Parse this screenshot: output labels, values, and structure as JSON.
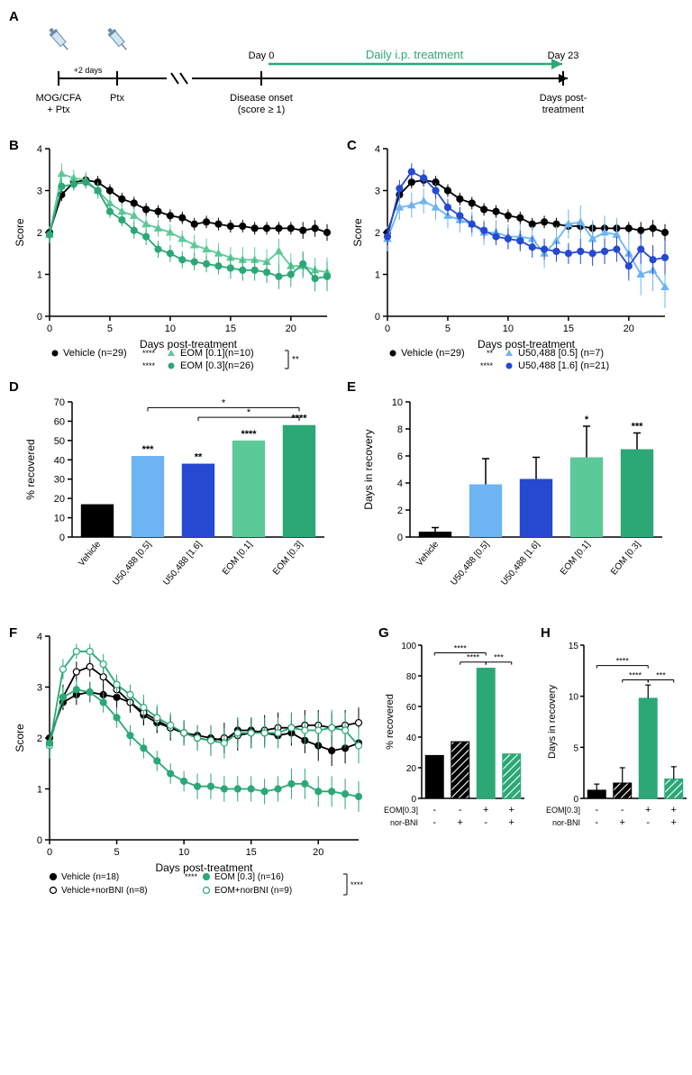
{
  "panelA": {
    "labels": {
      "mog": "MOG/CFA\n+ Ptx",
      "ptx": "Ptx",
      "onset": "Disease onset\n(score ≥ 1)",
      "day0": "Day 0",
      "day23": "Day 23",
      "days_post": "Days post-\ntreatment",
      "treatment": "Daily i.p. treatment",
      "plus2": "+2 days"
    },
    "arrow_color": "#2ba876"
  },
  "panelsBC": {
    "xlabel": "Days post-treatment",
    "ylabel": "Score",
    "xlim": [
      0,
      23
    ],
    "xtick_step": 5,
    "ylim": [
      0,
      4
    ],
    "ytick_step": 1,
    "vehicle": {
      "label": "Vehicle (n=29)",
      "color": "#000000",
      "marker": "circle",
      "x": [
        0,
        1,
        2,
        3,
        4,
        5,
        6,
        7,
        8,
        9,
        10,
        11,
        12,
        13,
        14,
        15,
        16,
        17,
        18,
        19,
        20,
        21,
        22,
        23
      ],
      "y": [
        2.0,
        2.9,
        3.2,
        3.25,
        3.2,
        3.0,
        2.8,
        2.7,
        2.55,
        2.5,
        2.4,
        2.35,
        2.2,
        2.25,
        2.2,
        2.15,
        2.15,
        2.1,
        2.1,
        2.1,
        2.1,
        2.05,
        2.1,
        2.0
      ],
      "err": [
        0.15,
        0.15,
        0.15,
        0.15,
        0.15,
        0.15,
        0.15,
        0.15,
        0.15,
        0.15,
        0.15,
        0.15,
        0.15,
        0.15,
        0.15,
        0.15,
        0.15,
        0.15,
        0.15,
        0.15,
        0.15,
        0.2,
        0.2,
        0.2
      ]
    }
  },
  "panelB": {
    "eom01": {
      "label": "EOM [0.1](n=10)",
      "color": "#5cc998",
      "marker": "triangle",
      "sig": "****",
      "x": [
        0,
        1,
        2,
        3,
        4,
        5,
        6,
        7,
        8,
        9,
        10,
        11,
        12,
        13,
        14,
        15,
        16,
        17,
        18,
        19,
        20,
        21,
        22,
        23
      ],
      "y": [
        1.95,
        3.4,
        3.3,
        3.25,
        3.0,
        2.7,
        2.5,
        2.4,
        2.2,
        2.1,
        2.0,
        1.85,
        1.7,
        1.6,
        1.5,
        1.4,
        1.35,
        1.35,
        1.3,
        1.55,
        1.2,
        1.2,
        1.1,
        1.05
      ],
      "err": [
        0.2,
        0.25,
        0.2,
        0.2,
        0.2,
        0.2,
        0.2,
        0.2,
        0.2,
        0.2,
        0.2,
        0.2,
        0.25,
        0.25,
        0.25,
        0.25,
        0.3,
        0.3,
        0.3,
        0.3,
        0.3,
        0.3,
        0.3,
        0.35
      ]
    },
    "eom03": {
      "label": "EOM [0.3](n=26)",
      "color": "#2ba876",
      "marker": "circle",
      "sig": "****",
      "x": [
        0,
        1,
        2,
        3,
        4,
        5,
        6,
        7,
        8,
        9,
        10,
        11,
        12,
        13,
        14,
        15,
        16,
        17,
        18,
        19,
        20,
        21,
        22,
        23
      ],
      "y": [
        1.95,
        3.1,
        3.15,
        3.2,
        3.0,
        2.5,
        2.3,
        2.05,
        1.9,
        1.6,
        1.5,
        1.35,
        1.3,
        1.25,
        1.2,
        1.15,
        1.1,
        1.1,
        1.05,
        0.95,
        1.0,
        1.25,
        0.9,
        0.95
      ],
      "err": [
        0.15,
        0.15,
        0.15,
        0.15,
        0.15,
        0.15,
        0.15,
        0.2,
        0.2,
        0.2,
        0.2,
        0.2,
        0.2,
        0.2,
        0.2,
        0.25,
        0.25,
        0.25,
        0.25,
        0.3,
        0.3,
        0.3,
        0.3,
        0.35
      ]
    },
    "bracket_sig": "**"
  },
  "panelC": {
    "u5005": {
      "label": "U50,488 [0.5] (n=7)",
      "color": "#6db4f2",
      "marker": "triangle",
      "sig": "**",
      "x": [
        0,
        1,
        2,
        3,
        4,
        5,
        6,
        7,
        8,
        9,
        10,
        11,
        12,
        13,
        14,
        15,
        16,
        17,
        18,
        19,
        20,
        21,
        22,
        23
      ],
      "y": [
        1.85,
        2.6,
        2.65,
        2.75,
        2.6,
        2.4,
        2.3,
        2.2,
        2.0,
        2.0,
        1.9,
        1.9,
        1.85,
        1.5,
        1.8,
        2.2,
        2.25,
        1.85,
        2.0,
        1.95,
        1.5,
        1.0,
        1.1,
        0.7
      ],
      "err": [
        0.3,
        0.3,
        0.3,
        0.3,
        0.3,
        0.3,
        0.3,
        0.3,
        0.3,
        0.3,
        0.3,
        0.3,
        0.3,
        0.35,
        0.35,
        0.35,
        0.4,
        0.45,
        0.4,
        0.4,
        0.5,
        0.5,
        0.5,
        0.5
      ]
    },
    "u5016": {
      "label": "U50,488 [1.6] (n=21)",
      "color": "#2549d1",
      "marker": "circle",
      "sig": "****",
      "x": [
        0,
        1,
        2,
        3,
        4,
        5,
        6,
        7,
        8,
        9,
        10,
        11,
        12,
        13,
        14,
        15,
        16,
        17,
        18,
        19,
        20,
        21,
        22,
        23
      ],
      "y": [
        1.9,
        3.05,
        3.45,
        3.3,
        3.0,
        2.6,
        2.4,
        2.2,
        2.05,
        1.9,
        1.85,
        1.8,
        1.65,
        1.6,
        1.55,
        1.5,
        1.55,
        1.5,
        1.55,
        1.6,
        1.2,
        1.6,
        1.35,
        1.4
      ],
      "err": [
        0.2,
        0.2,
        0.2,
        0.2,
        0.2,
        0.2,
        0.2,
        0.2,
        0.2,
        0.2,
        0.25,
        0.25,
        0.25,
        0.25,
        0.25,
        0.25,
        0.3,
        0.3,
        0.3,
        0.3,
        0.35,
        0.35,
        0.35,
        0.4
      ]
    }
  },
  "panelD": {
    "ylabel": "% recovered",
    "ylim": [
      0,
      70
    ],
    "ytick_step": 10,
    "categories": [
      "Vehicle",
      "U50,488 [0.5]",
      "U50,488 [1.6]",
      "EOM [0.1]",
      "EOM [0.3]"
    ],
    "values": [
      17,
      42,
      38,
      50,
      58
    ],
    "colors": [
      "#000000",
      "#6db4f2",
      "#2549d1",
      "#5cc998",
      "#2ba876"
    ],
    "sig_vs_vehicle": [
      "",
      "***",
      "**",
      "****",
      "****"
    ],
    "brackets": [
      {
        "from": 2,
        "to": 4,
        "sig": "*",
        "y": 62
      },
      {
        "from": 1,
        "to": 4,
        "sig": "*",
        "y": 67
      }
    ]
  },
  "panelE": {
    "ylabel": "Days in recovery",
    "ylim": [
      0,
      10
    ],
    "ytick_step": 2,
    "categories": [
      "Vehicle",
      "U50,488 [0.5]",
      "U50,488 [1.6]",
      "EOM [0.1]",
      "EOM [0.3]"
    ],
    "values": [
      0.4,
      3.9,
      4.3,
      5.9,
      6.5
    ],
    "errors": [
      0.3,
      1.9,
      1.6,
      2.3,
      1.2
    ],
    "colors": [
      "#000000",
      "#6db4f2",
      "#2549d1",
      "#5cc998",
      "#2ba876"
    ],
    "sig_vs_vehicle": [
      "",
      "",
      "",
      "*",
      "***"
    ]
  },
  "panelF": {
    "xlabel": "Days post-treatment",
    "ylabel": "Score",
    "xlim": [
      0,
      23
    ],
    "xtick_step": 5,
    "ylim": [
      0,
      4
    ],
    "ytick_step": 1,
    "series": {
      "vehicle": {
        "label": "Vehicle (n=18)",
        "color": "#000000",
        "marker": "circle",
        "fill": "#000000",
        "x": [
          0,
          1,
          2,
          3,
          4,
          5,
          6,
          7,
          8,
          9,
          10,
          11,
          12,
          13,
          14,
          15,
          16,
          17,
          18,
          19,
          20,
          21,
          22,
          23
        ],
        "y": [
          2.0,
          2.7,
          2.85,
          2.9,
          2.85,
          2.8,
          2.7,
          2.45,
          2.3,
          2.2,
          2.1,
          2.05,
          2.0,
          1.95,
          2.15,
          2.15,
          2.1,
          2.05,
          2.1,
          1.95,
          1.85,
          1.75,
          1.8,
          1.9
        ],
        "err": [
          0.2,
          0.15,
          0.2,
          0.2,
          0.2,
          0.2,
          0.2,
          0.2,
          0.2,
          0.2,
          0.2,
          0.2,
          0.2,
          0.25,
          0.25,
          0.25,
          0.25,
          0.25,
          0.25,
          0.25,
          0.3,
          0.3,
          0.3,
          0.3
        ]
      },
      "vehicle_norbni": {
        "label": "Vehicle+norBNI (n=8)",
        "color": "#000000",
        "marker": "circle",
        "fill": "#ffffff",
        "x": [
          0,
          1,
          2,
          3,
          4,
          5,
          6,
          7,
          8,
          9,
          10,
          11,
          12,
          13,
          14,
          15,
          16,
          17,
          18,
          19,
          20,
          21,
          22,
          23
        ],
        "y": [
          1.9,
          2.8,
          3.3,
          3.4,
          3.2,
          2.95,
          2.7,
          2.5,
          2.35,
          2.2,
          2.1,
          2.0,
          1.95,
          2.0,
          2.05,
          2.1,
          2.15,
          2.2,
          2.2,
          2.25,
          2.25,
          2.2,
          2.25,
          2.3
        ],
        "err": [
          0.3,
          0.25,
          0.2,
          0.2,
          0.2,
          0.2,
          0.2,
          0.25,
          0.25,
          0.25,
          0.25,
          0.25,
          0.3,
          0.3,
          0.3,
          0.3,
          0.3,
          0.3,
          0.3,
          0.3,
          0.3,
          0.3,
          0.3,
          0.3
        ]
      },
      "eom03": {
        "label": "EOM [0.3] (n=16)",
        "color": "#2ba876",
        "marker": "circle",
        "fill": "#2ba876",
        "sig": "****",
        "x": [
          0,
          1,
          2,
          3,
          4,
          5,
          6,
          7,
          8,
          9,
          10,
          11,
          12,
          13,
          14,
          15,
          16,
          17,
          18,
          19,
          20,
          21,
          22,
          23
        ],
        "y": [
          1.9,
          2.8,
          2.95,
          2.9,
          2.7,
          2.4,
          2.05,
          1.8,
          1.55,
          1.3,
          1.15,
          1.05,
          1.05,
          1.0,
          1.0,
          1.0,
          0.95,
          1.0,
          1.1,
          1.1,
          0.95,
          0.95,
          0.9,
          0.85
        ],
        "err": [
          0.2,
          0.2,
          0.2,
          0.2,
          0.2,
          0.2,
          0.2,
          0.2,
          0.2,
          0.2,
          0.2,
          0.25,
          0.25,
          0.25,
          0.25,
          0.25,
          0.25,
          0.25,
          0.3,
          0.3,
          0.3,
          0.3,
          0.3,
          0.3
        ]
      },
      "eom_norbni": {
        "label": "EOM+norBNI (n=9)",
        "color": "#2ba876",
        "marker": "circle",
        "fill": "#ffffff",
        "x": [
          0,
          1,
          2,
          3,
          4,
          5,
          6,
          7,
          8,
          9,
          10,
          11,
          12,
          13,
          14,
          15,
          16,
          17,
          18,
          19,
          20,
          21,
          22,
          23
        ],
        "y": [
          1.85,
          3.35,
          3.7,
          3.7,
          3.45,
          3.05,
          2.85,
          2.6,
          2.4,
          2.25,
          2.1,
          2.0,
          1.95,
          1.9,
          2.1,
          2.1,
          2.1,
          2.1,
          2.2,
          2.15,
          2.15,
          2.2,
          2.15,
          1.85
        ],
        "err": [
          0.25,
          0.2,
          0.15,
          0.15,
          0.2,
          0.2,
          0.2,
          0.25,
          0.25,
          0.25,
          0.25,
          0.25,
          0.3,
          0.3,
          0.3,
          0.3,
          0.3,
          0.3,
          0.3,
          0.3,
          0.35,
          0.35,
          0.35,
          0.35
        ]
      }
    },
    "bracket_sig": "****"
  },
  "panelG": {
    "ylabel": "% recovered",
    "ylim": [
      0,
      100
    ],
    "ytick_step": 20,
    "conditions": [
      "-/-",
      "-/+",
      "+/-",
      "+/+"
    ],
    "values": [
      28,
      37,
      85,
      29
    ],
    "colors": [
      "#000000",
      "#000000",
      "#2ba876",
      "#2ba876"
    ],
    "hatched": [
      false,
      true,
      false,
      true
    ],
    "brackets": [
      {
        "from": 0,
        "to": 2,
        "sig": "****",
        "y": 95
      },
      {
        "from": 1,
        "to": 2,
        "sig": "****",
        "y": 89
      },
      {
        "from": 2,
        "to": 3,
        "sig": "***",
        "y": 89
      }
    ],
    "row1_label": "EOM[0.3]",
    "row2_label": "nor-BNI",
    "row1": [
      "-",
      "-",
      "+",
      "+"
    ],
    "row2": [
      "-",
      "+",
      "-",
      "+"
    ]
  },
  "panelH": {
    "ylabel": "Days in recovery",
    "ylim": [
      0,
      15
    ],
    "ytick_step": 5,
    "values": [
      0.8,
      1.5,
      9.8,
      1.9
    ],
    "errors": [
      0.6,
      1.5,
      1.3,
      1.2
    ],
    "colors": [
      "#000000",
      "#000000",
      "#2ba876",
      "#2ba876"
    ],
    "hatched": [
      false,
      true,
      false,
      true
    ],
    "brackets": [
      {
        "from": 0,
        "to": 2,
        "sig": "****",
        "y": 13
      },
      {
        "from": 1,
        "to": 2,
        "sig": "****",
        "y": 11.6
      },
      {
        "from": 2,
        "to": 3,
        "sig": "***",
        "y": 11.6
      }
    ],
    "row1_label": "EOM[0.3]",
    "row2_label": "nor-BNI",
    "row1": [
      "-",
      "-",
      "+",
      "+"
    ],
    "row2": [
      "-",
      "+",
      "-",
      "+"
    ]
  }
}
